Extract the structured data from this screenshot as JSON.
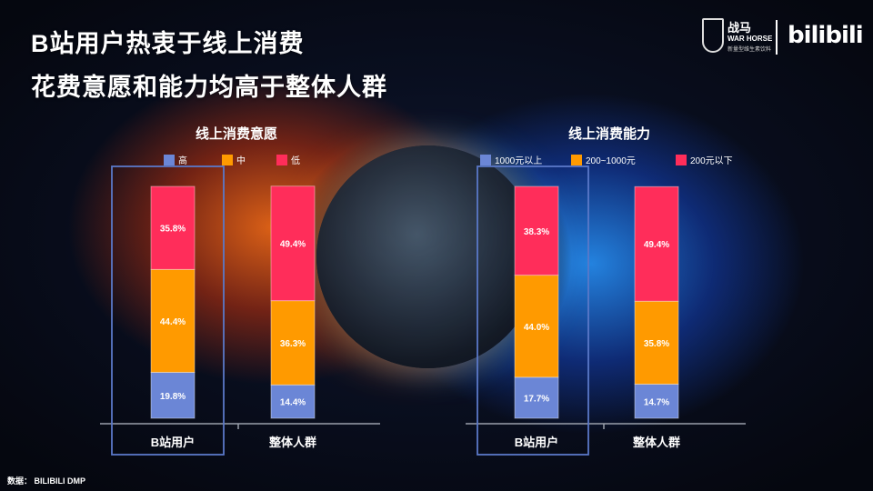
{
  "title_line1": "B站用户热衷于线上消费",
  "title_line2": "花费意愿和能力均高于整体人群",
  "logo": {
    "warhorse_mark": "战马",
    "warhorse_brand": "WAR HORSE",
    "warhorse_tag": "新量型维生素饮料",
    "bilibili": "bilibili"
  },
  "footer": "数据： BILIBILI DMP",
  "colors": {
    "blue": "#6b86d6",
    "orange": "#ff9a00",
    "pink": "#ff2d5a",
    "highlight": "#5a78c8"
  },
  "chart_data": [
    {
      "type": "bar",
      "stacked": true,
      "title": "线上消费意愿",
      "categories": [
        "B站用户",
        "整体人群"
      ],
      "series": [
        {
          "name": "高",
          "color": "#6b86d6",
          "values": [
            19.8,
            14.4
          ],
          "labels": [
            "19.8%",
            "14.4%"
          ]
        },
        {
          "name": "中",
          "color": "#ff9a00",
          "values": [
            44.4,
            36.3
          ],
          "labels": [
            "44.4%",
            "36.3%"
          ]
        },
        {
          "name": "低",
          "color": "#ff2d5a",
          "values": [
            35.8,
            49.4
          ],
          "labels": [
            "35.8%",
            "49.4%"
          ]
        }
      ],
      "ylim": [
        0,
        100
      ],
      "legend": "top",
      "highlight_category": "B站用户"
    },
    {
      "type": "bar",
      "stacked": true,
      "title": "线上消费能力",
      "categories": [
        "B站用户",
        "整体人群"
      ],
      "series": [
        {
          "name": "1000元以上",
          "color": "#6b86d6",
          "values": [
            17.7,
            14.7
          ],
          "labels": [
            "17.7%",
            "14.7%"
          ]
        },
        {
          "name": "200~1000元",
          "color": "#ff9a00",
          "values": [
            44.0,
            35.8
          ],
          "labels": [
            "44.0%",
            "35.8%"
          ]
        },
        {
          "name": "200元以下",
          "color": "#ff2d5a",
          "values": [
            38.3,
            49.4
          ],
          "labels": [
            "38.3%",
            "49.4%"
          ]
        }
      ],
      "ylim": [
        0,
        100
      ],
      "legend": "top",
      "highlight_category": "B站用户"
    }
  ]
}
